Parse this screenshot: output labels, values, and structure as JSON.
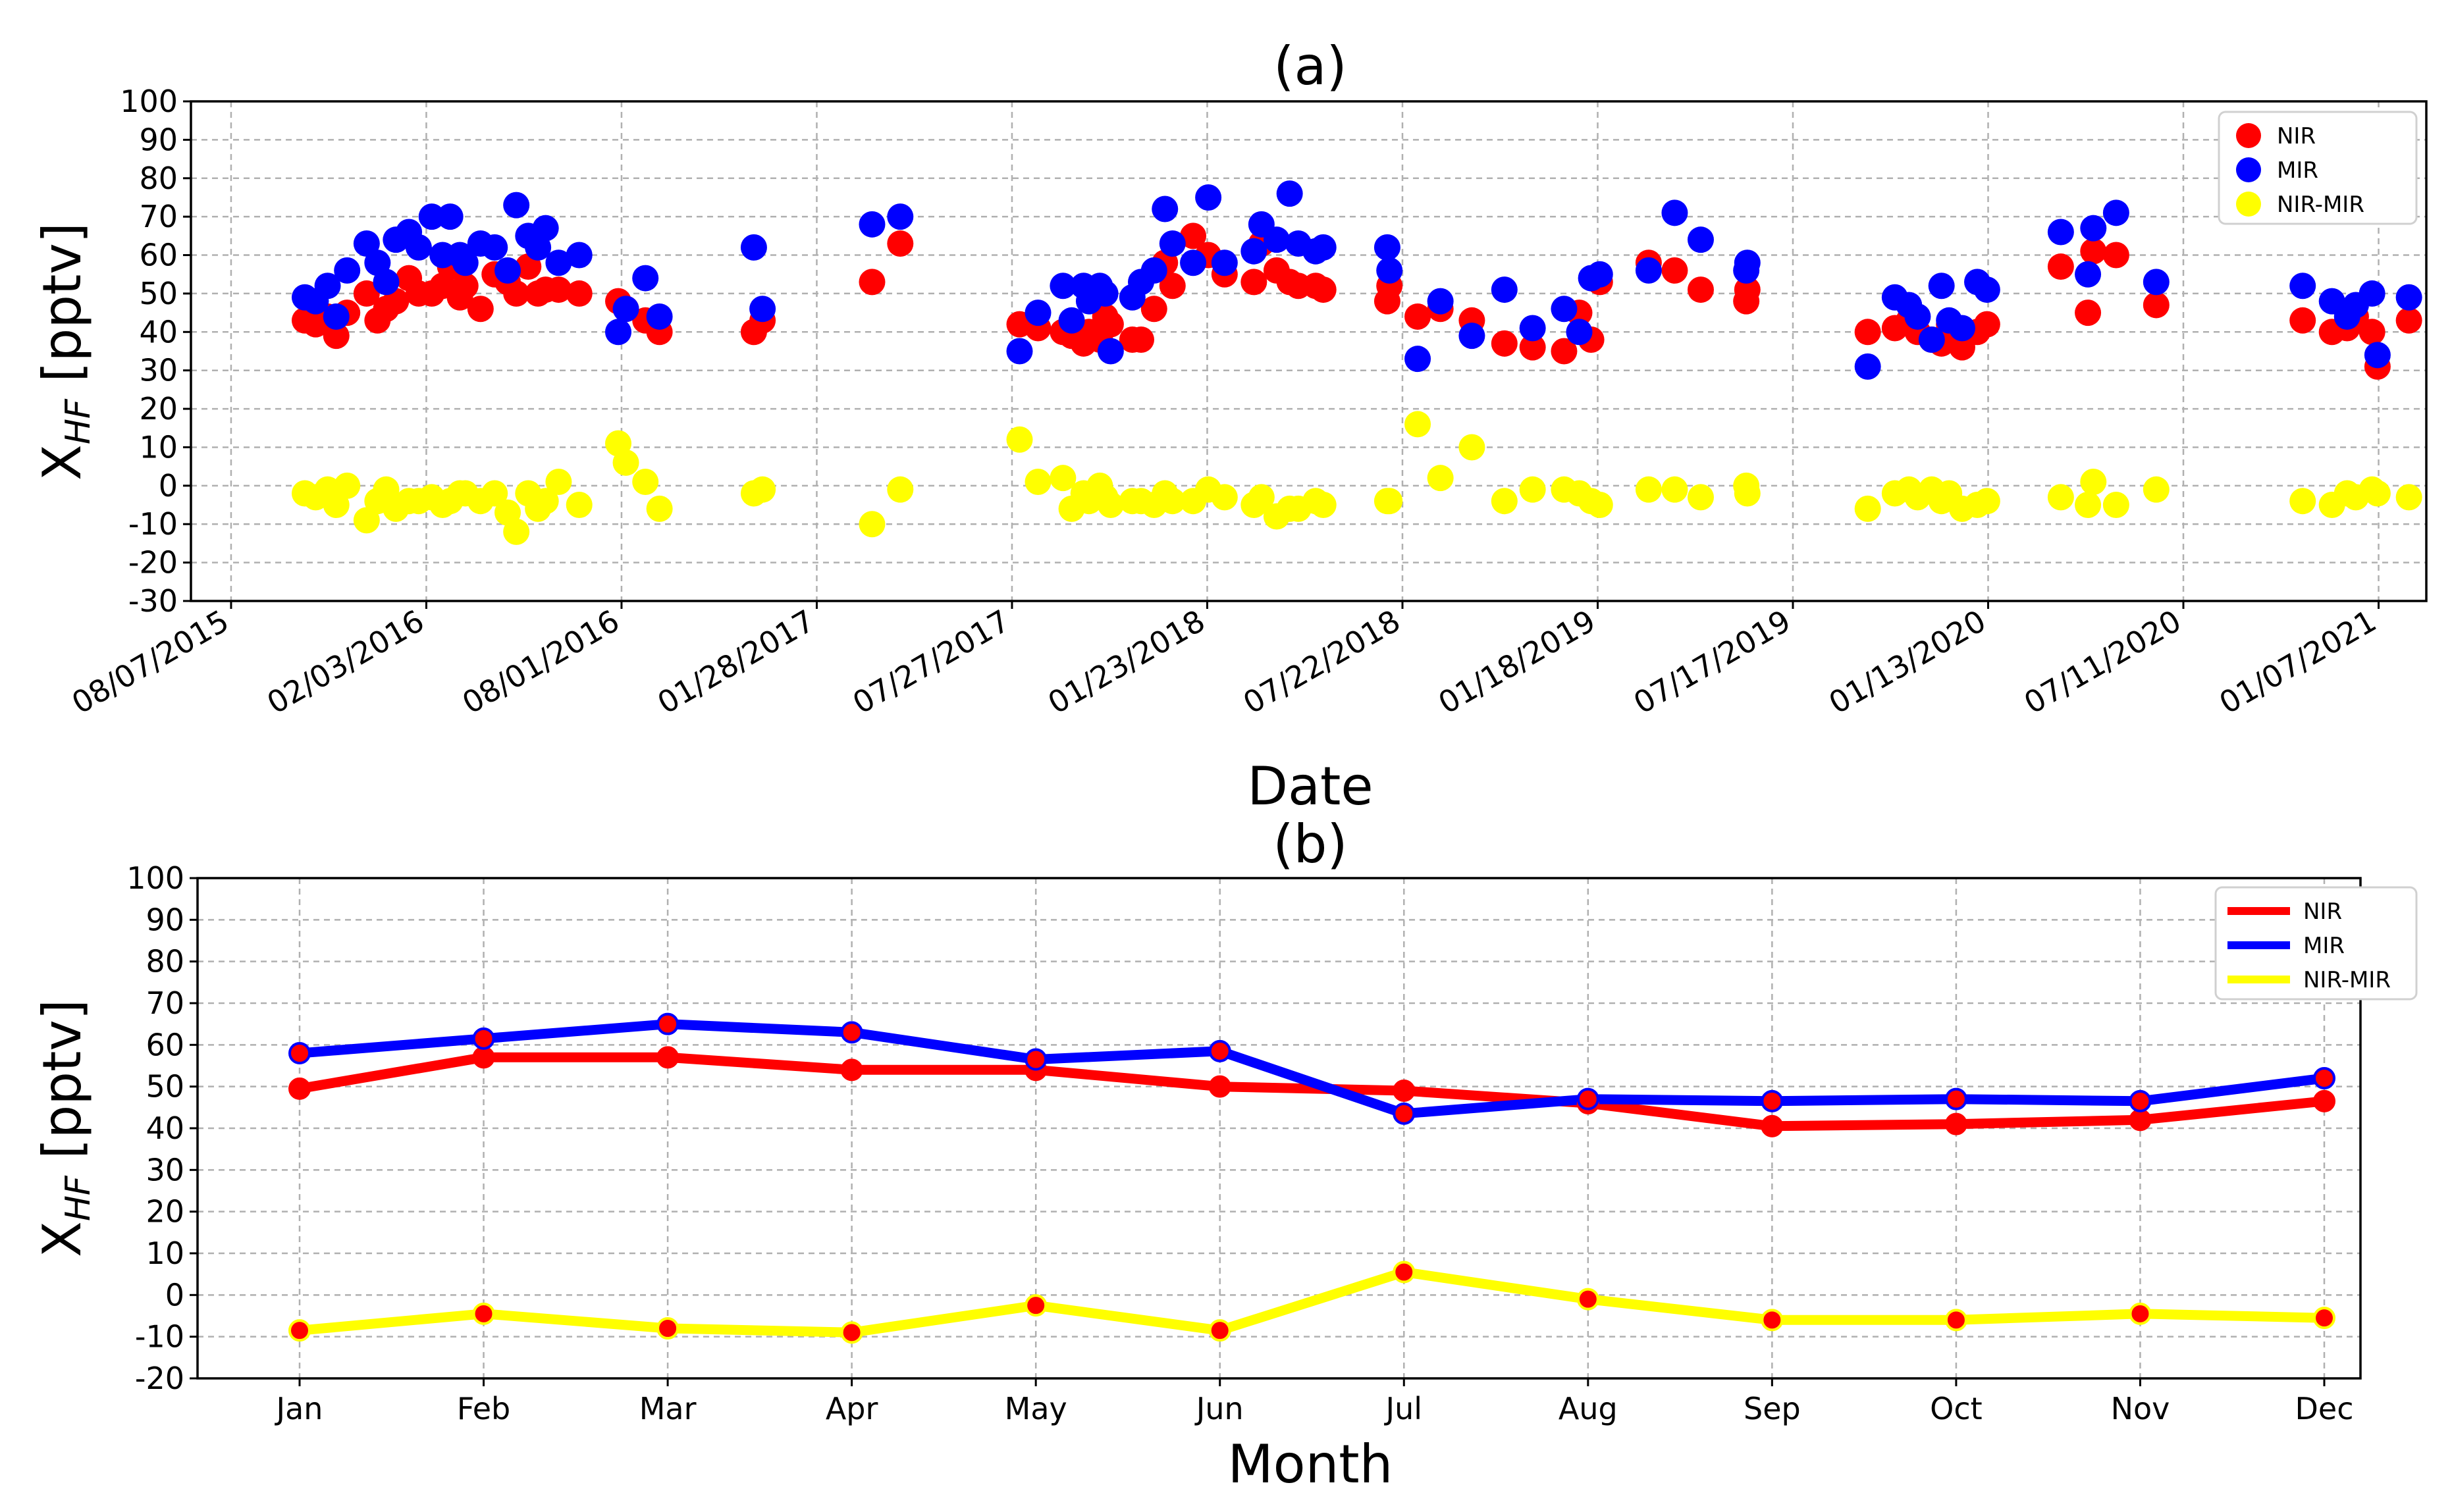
{
  "chart_data": [
    {
      "type": "scatter",
      "title": "(a)",
      "xlabel": "Date",
      "ylabel_main": "X",
      "ylabel_sub": "HF",
      "ylabel_unit": "[pptv]",
      "ylim": [
        -30,
        100
      ],
      "yticks": [
        -30,
        -20,
        -10,
        0,
        10,
        20,
        30,
        40,
        50,
        60,
        70,
        80,
        90,
        100
      ],
      "xlim": [
        "2015-07-01",
        "2021-02-20"
      ],
      "xticks": [
        {
          "date": "2015-08-07",
          "label": "08/07/2015"
        },
        {
          "date": "2016-02-03",
          "label": "02/03/2016"
        },
        {
          "date": "2016-08-01",
          "label": "08/01/2016"
        },
        {
          "date": "2017-01-28",
          "label": "01/28/2017"
        },
        {
          "date": "2017-07-27",
          "label": "07/27/2017"
        },
        {
          "date": "2018-01-23",
          "label": "01/23/2018"
        },
        {
          "date": "2018-07-22",
          "label": "07/22/2018"
        },
        {
          "date": "2019-01-18",
          "label": "01/18/2019"
        },
        {
          "date": "2019-07-17",
          "label": "07/17/2019"
        },
        {
          "date": "2020-01-13",
          "label": "01/13/2020"
        },
        {
          "date": "2020-07-11",
          "label": "07/11/2020"
        },
        {
          "date": "2021-01-07",
          "label": "01/07/2021"
        }
      ],
      "grid": true,
      "legend_position": "top-right",
      "legend": [
        {
          "name": "NIR",
          "color": "#ff0000"
        },
        {
          "name": "MIR",
          "color": "#0000ff"
        },
        {
          "name": "NIR-MIR",
          "color": "#ffff00"
        }
      ],
      "series": [
        {
          "name": "NIR",
          "color": "#ff0000",
          "x": [
            "2015-10-14",
            "2015-10-24",
            "2015-11-04",
            "2015-11-12",
            "2015-11-22",
            "2015-12-10",
            "2015-12-20",
            "2015-12-28",
            "2016-01-06",
            "2016-01-18",
            "2016-01-27",
            "2016-02-08",
            "2016-02-18",
            "2016-02-25",
            "2016-03-05",
            "2016-03-10",
            "2016-03-24",
            "2016-04-06",
            "2016-04-18",
            "2016-04-26",
            "2016-05-07",
            "2016-05-16",
            "2016-05-23",
            "2016-06-04",
            "2016-06-23",
            "2016-07-29",
            "2016-08-05",
            "2016-08-23",
            "2016-09-05",
            "2016-12-01",
            "2016-12-09",
            "2017-03-20",
            "2017-04-15",
            "2017-08-03",
            "2017-08-20",
            "2017-09-12",
            "2017-09-20",
            "2017-10-01",
            "2017-10-06",
            "2017-10-16",
            "2017-10-21",
            "2017-10-26",
            "2017-11-15",
            "2017-11-23",
            "2017-12-05",
            "2017-12-15",
            "2017-12-22",
            "2018-01-10",
            "2018-01-24",
            "2018-02-08",
            "2018-03-07",
            "2018-03-14",
            "2018-03-28",
            "2018-04-09",
            "2018-04-17",
            "2018-05-03",
            "2018-05-10",
            "2018-07-08",
            "2018-07-10",
            "2018-08-05",
            "2018-08-26",
            "2018-09-24",
            "2018-10-24",
            "2018-11-19",
            "2018-12-18",
            "2019-01-01",
            "2019-01-12",
            "2019-01-20",
            "2019-03-06",
            "2019-03-30",
            "2019-04-23",
            "2019-06-04",
            "2019-06-05",
            "2019-09-24",
            "2019-10-19",
            "2019-11-01",
            "2019-11-09",
            "2019-11-22",
            "2019-12-01",
            "2019-12-08",
            "2019-12-20",
            "2020-01-03",
            "2020-01-12",
            "2020-03-20",
            "2020-04-14",
            "2020-04-19",
            "2020-05-10",
            "2020-06-16",
            "2020-10-29",
            "2020-11-25",
            "2020-12-09",
            "2020-12-17",
            "2021-01-01",
            "2021-01-06",
            "2021-02-04"
          ],
          "y": [
            43,
            42,
            44,
            39,
            45,
            50,
            43,
            46,
            48,
            54,
            50,
            50,
            52,
            57,
            49,
            52,
            46,
            55,
            53,
            50,
            57,
            50,
            51,
            51,
            50,
            48,
            46,
            43,
            40,
            40,
            43,
            53,
            63,
            42,
            41,
            40,
            39,
            37,
            40,
            38,
            44,
            42,
            38,
            38,
            46,
            58,
            52,
            65,
            60,
            55,
            53,
            63,
            56,
            53,
            52,
            52,
            51,
            48,
            52,
            44,
            46,
            43,
            37,
            36,
            35,
            45,
            38,
            53,
            58,
            56,
            51,
            48,
            51,
            40,
            41,
            43,
            40,
            38,
            37,
            42,
            36,
            40,
            42,
            57,
            45,
            61,
            60,
            47,
            43,
            40,
            41,
            44,
            40,
            31,
            43
          ]
        },
        {
          "name": "MIR",
          "color": "#0000ff",
          "x": [
            "2015-10-14",
            "2015-10-24",
            "2015-11-04",
            "2015-11-12",
            "2015-11-22",
            "2015-12-10",
            "2015-12-20",
            "2015-12-28",
            "2016-01-06",
            "2016-01-18",
            "2016-01-27",
            "2016-02-08",
            "2016-02-18",
            "2016-02-25",
            "2016-03-05",
            "2016-03-10",
            "2016-03-24",
            "2016-04-06",
            "2016-04-18",
            "2016-04-26",
            "2016-05-07",
            "2016-05-16",
            "2016-05-23",
            "2016-06-04",
            "2016-06-23",
            "2016-07-29",
            "2016-08-05",
            "2016-08-23",
            "2016-09-05",
            "2016-12-01",
            "2016-12-09",
            "2017-03-20",
            "2017-04-15",
            "2017-08-03",
            "2017-08-20",
            "2017-09-12",
            "2017-09-20",
            "2017-10-01",
            "2017-10-06",
            "2017-10-16",
            "2017-10-21",
            "2017-10-26",
            "2017-11-15",
            "2017-11-23",
            "2017-12-05",
            "2017-12-15",
            "2017-12-22",
            "2018-01-10",
            "2018-01-24",
            "2018-02-08",
            "2018-03-07",
            "2018-03-14",
            "2018-03-28",
            "2018-04-09",
            "2018-04-17",
            "2018-05-03",
            "2018-05-10",
            "2018-07-08",
            "2018-07-10",
            "2018-08-05",
            "2018-08-26",
            "2018-09-24",
            "2018-10-24",
            "2018-11-19",
            "2018-12-18",
            "2019-01-01",
            "2019-01-12",
            "2019-01-20",
            "2019-03-06",
            "2019-03-30",
            "2019-04-23",
            "2019-06-04",
            "2019-06-05",
            "2019-09-24",
            "2019-10-19",
            "2019-11-01",
            "2019-11-09",
            "2019-11-22",
            "2019-12-01",
            "2019-12-08",
            "2019-12-20",
            "2020-01-03",
            "2020-01-12",
            "2020-03-20",
            "2020-04-14",
            "2020-04-19",
            "2020-05-10",
            "2020-06-16",
            "2020-10-29",
            "2020-11-25",
            "2020-12-09",
            "2020-12-17",
            "2021-01-01",
            "2021-01-06",
            "2021-02-04"
          ],
          "y": [
            49,
            48,
            52,
            44,
            56,
            63,
            58,
            53,
            64,
            66,
            62,
            70,
            60,
            70,
            60,
            58,
            63,
            62,
            56,
            73,
            65,
            62,
            67,
            58,
            60,
            40,
            46,
            54,
            44,
            62,
            46,
            68,
            70,
            35,
            45,
            52,
            43,
            52,
            48,
            52,
            50,
            35,
            49,
            53,
            56,
            72,
            63,
            58,
            75,
            58,
            61,
            68,
            64,
            76,
            63,
            61,
            62,
            62,
            56,
            33,
            48,
            39,
            51,
            41,
            46,
            40,
            54,
            55,
            56,
            71,
            64,
            56,
            58,
            31,
            49,
            47,
            44,
            38,
            52,
            43,
            41,
            53,
            51,
            66,
            55,
            67,
            71,
            53,
            52,
            48,
            44,
            47,
            50,
            34,
            49
          ]
        },
        {
          "name": "NIR-MIR",
          "color": "#ffff00",
          "x": [
            "2015-10-14",
            "2015-10-24",
            "2015-11-04",
            "2015-11-12",
            "2015-11-22",
            "2015-12-10",
            "2015-12-20",
            "2015-12-28",
            "2016-01-06",
            "2016-01-18",
            "2016-01-27",
            "2016-02-08",
            "2016-02-18",
            "2016-02-25",
            "2016-03-05",
            "2016-03-10",
            "2016-03-24",
            "2016-04-06",
            "2016-04-18",
            "2016-04-26",
            "2016-05-07",
            "2016-05-16",
            "2016-05-23",
            "2016-06-04",
            "2016-06-23",
            "2016-07-29",
            "2016-08-05",
            "2016-08-23",
            "2016-09-05",
            "2016-12-01",
            "2016-12-09",
            "2017-03-20",
            "2017-04-15",
            "2017-08-03",
            "2017-08-20",
            "2017-09-12",
            "2017-09-20",
            "2017-10-01",
            "2017-10-06",
            "2017-10-16",
            "2017-10-21",
            "2017-10-26",
            "2017-11-15",
            "2017-11-23",
            "2017-12-05",
            "2017-12-15",
            "2017-12-22",
            "2018-01-10",
            "2018-01-24",
            "2018-02-08",
            "2018-03-07",
            "2018-03-14",
            "2018-03-28",
            "2018-04-09",
            "2018-04-17",
            "2018-05-03",
            "2018-05-10",
            "2018-07-08",
            "2018-07-10",
            "2018-08-05",
            "2018-08-26",
            "2018-09-24",
            "2018-10-24",
            "2018-11-19",
            "2018-12-18",
            "2019-01-01",
            "2019-01-12",
            "2019-01-20",
            "2019-03-06",
            "2019-03-30",
            "2019-04-23",
            "2019-06-04",
            "2019-06-05",
            "2019-09-24",
            "2019-10-19",
            "2019-11-01",
            "2019-11-09",
            "2019-11-22",
            "2019-12-01",
            "2019-12-08",
            "2019-12-20",
            "2020-01-03",
            "2020-01-12",
            "2020-03-20",
            "2020-04-14",
            "2020-04-19",
            "2020-05-10",
            "2020-06-16",
            "2020-10-29",
            "2020-11-25",
            "2020-12-09",
            "2020-12-17",
            "2021-01-01",
            "2021-01-06",
            "2021-02-04"
          ],
          "y": [
            -2,
            -3,
            -1,
            -5,
            0,
            -9,
            -4,
            -1,
            -6,
            -4,
            -4,
            -3,
            -5,
            -4,
            -2,
            -2,
            -4,
            -2,
            -7,
            -12,
            -2,
            -6,
            -4,
            1,
            -5,
            11,
            6,
            1,
            -6,
            -2,
            -1,
            -10,
            -1,
            12,
            1,
            2,
            -6,
            -2,
            -4,
            0,
            -3,
            -5,
            -4,
            -4,
            -5,
            -2,
            -4,
            -4,
            -1,
            -3,
            -5,
            -3,
            -8,
            -6,
            -6,
            -4,
            -5,
            -4,
            -4,
            16,
            2,
            10,
            -4,
            -1,
            -1,
            -2,
            -4,
            -5,
            -1,
            -1,
            -3,
            0,
            -2,
            -6,
            -2,
            -1,
            -3,
            -1,
            -4,
            -2,
            -6,
            -5,
            -4,
            -3,
            -5,
            1,
            -5,
            -1,
            -4,
            -5,
            -2,
            -3,
            -1,
            -2,
            -3
          ]
        }
      ]
    },
    {
      "type": "line",
      "title": "(b)",
      "xlabel": "Month",
      "ylabel_main": "X",
      "ylabel_sub": "HF",
      "ylabel_unit": "[pptv]",
      "ylim": [
        -20,
        100
      ],
      "yticks": [
        -20,
        -10,
        0,
        10,
        20,
        30,
        40,
        50,
        60,
        70,
        80,
        90,
        100
      ],
      "categories": [
        "Jan",
        "Feb",
        "Mar",
        "Apr",
        "May",
        "Jun",
        "Jul",
        "Aug",
        "Sep",
        "Oct",
        "Nov",
        "Dec"
      ],
      "grid": true,
      "legend_position": "top-right",
      "legend": [
        {
          "name": "NIR",
          "color": "#ff0000"
        },
        {
          "name": "MIR",
          "color": "#0000ff"
        },
        {
          "name": "NIR-MIR",
          "color": "#ffff00"
        }
      ],
      "series": [
        {
          "name": "NIR",
          "color": "#ff0000",
          "values": [
            49.5,
            57,
            57,
            54,
            54,
            50,
            49,
            46,
            40.5,
            41,
            42,
            46.5
          ]
        },
        {
          "name": "MIR",
          "color": "#0000ff",
          "values": [
            58,
            61.5,
            65,
            63,
            56.5,
            58.5,
            43.5,
            47,
            46.5,
            47,
            46.5,
            52
          ]
        },
        {
          "name": "NIR-MIR",
          "color": "#ffff00",
          "values": [
            -8.5,
            -4.5,
            -8,
            -9,
            -2.5,
            -8.5,
            5.5,
            -1,
            -6,
            -6,
            -4.5,
            -5.5
          ]
        }
      ]
    }
  ]
}
